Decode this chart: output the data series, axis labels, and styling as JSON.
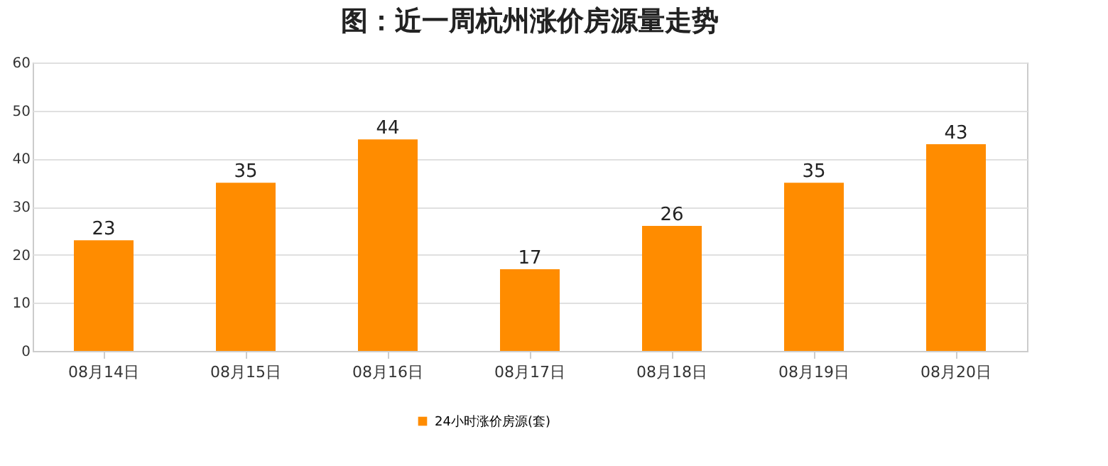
{
  "chart_data": {
    "type": "bar",
    "title": "图：近一周杭州涨价房源量走势",
    "categories": [
      "08月14日",
      "08月15日",
      "08月16日",
      "08月17日",
      "08月18日",
      "08月19日",
      "08月20日"
    ],
    "series": [
      {
        "name": "24小时涨价房源(套)",
        "color": "#ff8c00",
        "values": [
          23,
          35,
          44,
          17,
          26,
          35,
          43
        ]
      }
    ],
    "ylim": [
      0,
      60
    ],
    "yticks": [
      0,
      10,
      20,
      30,
      40,
      50,
      60
    ],
    "grid": "y",
    "legend": "bottom",
    "data_labels": true
  }
}
